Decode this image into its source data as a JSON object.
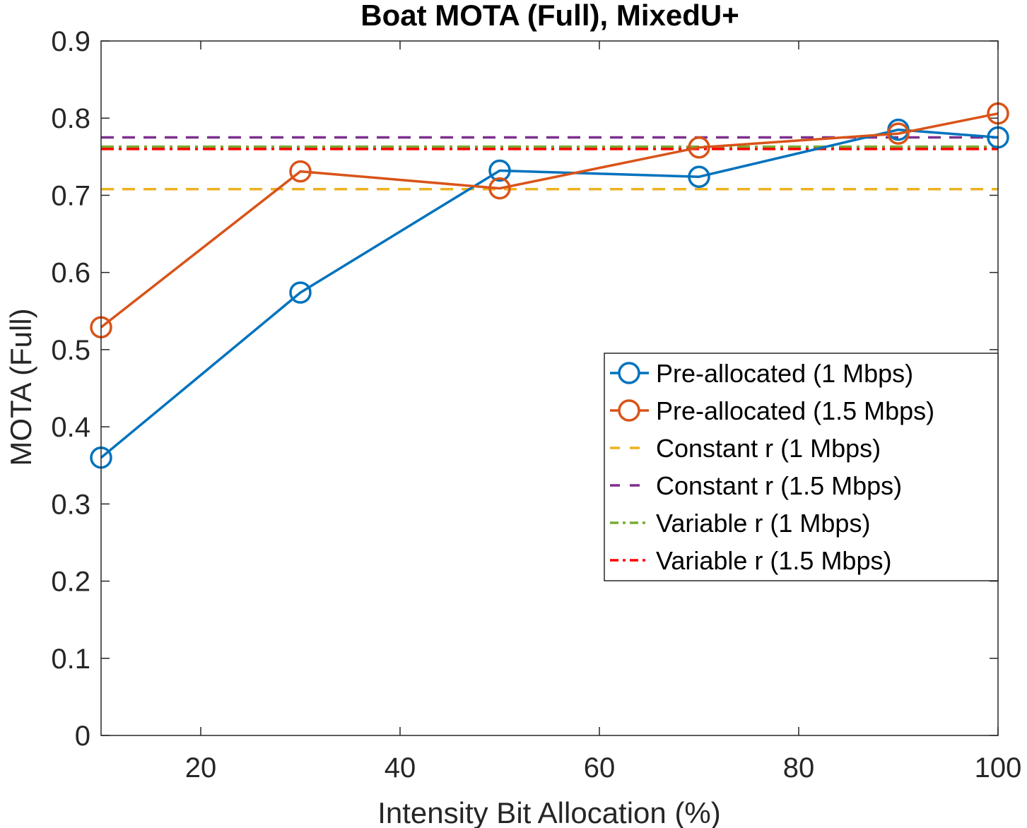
{
  "chart_data": {
    "type": "line",
    "title": "Boat MOTA (Full), MixedU+",
    "xlabel": "Intensity Bit Allocation (%)",
    "ylabel": "MOTA (Full)",
    "xlim": [
      10,
      100
    ],
    "ylim": [
      0,
      0.9
    ],
    "xticks": [
      20,
      40,
      60,
      80,
      100
    ],
    "yticks": [
      0,
      0.1,
      0.2,
      0.3,
      0.4,
      0.5,
      0.6,
      0.7,
      0.8,
      0.9
    ],
    "xtick_labels": [
      "20",
      "40",
      "60",
      "80",
      "100"
    ],
    "ytick_labels": [
      "0",
      "0.1",
      "0.2",
      "0.3",
      "0.4",
      "0.5",
      "0.6",
      "0.7",
      "0.8",
      "0.9"
    ],
    "grid": false,
    "legend_position": "right",
    "series": [
      {
        "name": "Pre-allocated (1 Mbps)",
        "style": "solid-circle",
        "color": "#0072BD",
        "x": [
          10,
          30,
          50,
          70,
          90,
          100
        ],
        "y": [
          0.36,
          0.574,
          0.732,
          0.724,
          0.785,
          0.775
        ]
      },
      {
        "name": "Pre-allocated (1.5 Mbps)",
        "style": "solid-circle",
        "color": "#D95319",
        "x": [
          10,
          30,
          50,
          70,
          90,
          100
        ],
        "y": [
          0.529,
          0.731,
          0.709,
          0.762,
          0.78,
          0.806
        ]
      },
      {
        "name": "Constant r (1 Mbps)",
        "style": "dashed",
        "color": "#EDB120",
        "x": [
          10,
          100
        ],
        "y": [
          0.708,
          0.708
        ]
      },
      {
        "name": "Constant r (1.5 Mbps)",
        "style": "dashed",
        "color": "#7E2F8E",
        "x": [
          10,
          100
        ],
        "y": [
          0.775,
          0.775
        ]
      },
      {
        "name": "Variable r (1 Mbps)",
        "style": "dashdot",
        "color": "#77AC30",
        "x": [
          10,
          100
        ],
        "y": [
          0.763,
          0.763
        ]
      },
      {
        "name": "Variable r (1.5 Mbps)",
        "style": "dashdot",
        "color": "#FF0000",
        "x": [
          10,
          100
        ],
        "y": [
          0.76,
          0.76
        ]
      }
    ]
  }
}
